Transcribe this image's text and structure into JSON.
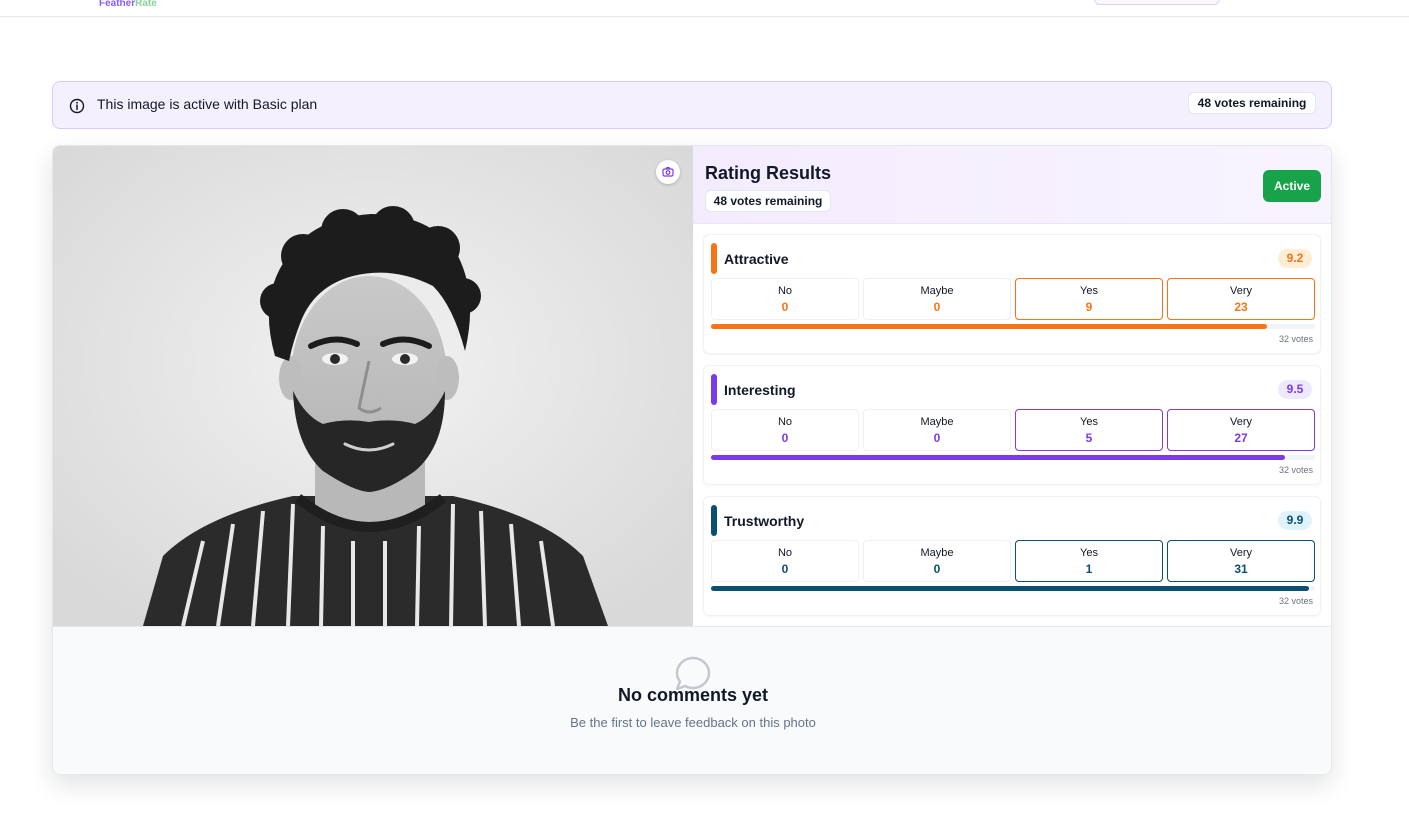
{
  "app": {
    "logo_part1": "Feather",
    "logo_part2": "Rate"
  },
  "notice": {
    "message": "This image is active with Basic plan",
    "votes_remaining": "48 votes remaining"
  },
  "results": {
    "title": "Rating Results",
    "votes_remaining": "48 votes remaining",
    "status": "Active",
    "metrics": [
      {
        "name": "Attractive",
        "score": "9.2",
        "color": "#f97316",
        "score_bg": "#ffedd5",
        "options": [
          {
            "label": "No",
            "value": "0"
          },
          {
            "label": "Maybe",
            "value": "0"
          },
          {
            "label": "Yes",
            "value": "9"
          },
          {
            "label": "Very",
            "value": "23"
          }
        ],
        "fill_fraction": 0.92,
        "votes": "32 votes"
      },
      {
        "name": "Interesting",
        "score": "9.5",
        "color": "#7c3aed",
        "score_bg": "#ede9fe",
        "options": [
          {
            "label": "No",
            "value": "0"
          },
          {
            "label": "Maybe",
            "value": "0"
          },
          {
            "label": "Yes",
            "value": "5"
          },
          {
            "label": "Very",
            "value": "27"
          }
        ],
        "fill_fraction": 0.95,
        "votes": "32 votes"
      },
      {
        "name": "Trustworthy",
        "score": "9.9",
        "color": "#0b4f71",
        "score_bg": "#e0f2fe",
        "options": [
          {
            "label": "No",
            "value": "0"
          },
          {
            "label": "Maybe",
            "value": "0"
          },
          {
            "label": "Yes",
            "value": "1"
          },
          {
            "label": "Very",
            "value": "31"
          }
        ],
        "fill_fraction": 0.99,
        "votes": "32 votes"
      }
    ]
  },
  "comments": {
    "empty_title": "No comments yet",
    "empty_subtitle": "Be the first to leave feedback on this photo"
  },
  "icons": {
    "notice": "info-icon",
    "photo_action": "camera-icon",
    "comments_empty": "chat-bubble-icon"
  }
}
